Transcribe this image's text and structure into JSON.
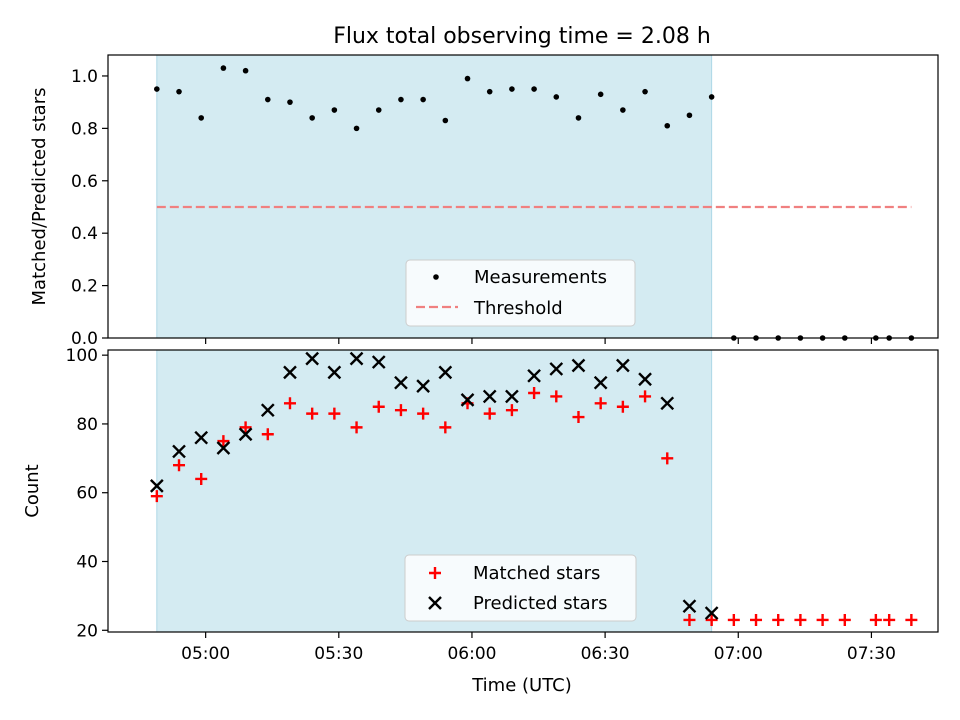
{
  "title": "Flux total observing time = 2.08 h",
  "colors": {
    "shade": "#add8e6",
    "threshold": "#f08080",
    "matched": "#ff0000",
    "predicted": "#000000",
    "measurement": "#000000"
  },
  "chart_data": [
    {
      "type": "scatter",
      "panel": "top",
      "ylabel": "Matched/Predicted stars",
      "xlabel": "",
      "xlim": [
        "04:38",
        "07:45"
      ],
      "ylim": [
        0,
        1.08
      ],
      "yticks": [
        "0.0",
        "0.2",
        "0.4",
        "0.6",
        "0.8",
        "1.0"
      ],
      "shaded_region": [
        "04:49",
        "06:54"
      ],
      "series": [
        {
          "name": "Measurements",
          "marker": "dot",
          "x": [
            "04:49",
            "04:54",
            "04:59",
            "05:04",
            "05:09",
            "05:14",
            "05:19",
            "05:24",
            "05:29",
            "05:34",
            "05:39",
            "05:44",
            "05:49",
            "05:54",
            "05:59",
            "06:04",
            "06:09",
            "06:14",
            "06:19",
            "06:24",
            "06:29",
            "06:34",
            "06:39",
            "06:44",
            "06:49",
            "06:54",
            "06:59",
            "07:04",
            "07:09",
            "07:14",
            "07:19",
            "07:24",
            "07:31",
            "07:34",
            "07:39"
          ],
          "y": [
            0.95,
            0.94,
            0.84,
            1.03,
            1.02,
            0.91,
            0.9,
            0.84,
            0.87,
            0.8,
            0.87,
            0.91,
            0.91,
            0.83,
            0.99,
            0.94,
            0.95,
            0.95,
            0.92,
            0.84,
            0.93,
            0.87,
            0.94,
            0.81,
            0.85,
            0.92,
            0,
            0,
            0,
            0,
            0,
            0,
            0,
            0,
            0
          ]
        },
        {
          "name": "Threshold",
          "line": "dashed",
          "x": [
            "04:49",
            "07:39"
          ],
          "y": [
            0.5,
            0.5
          ]
        }
      ],
      "legend": "lower-center"
    },
    {
      "type": "scatter",
      "panel": "bottom",
      "ylabel": "Count",
      "xlabel": "Time (UTC)",
      "xlim": [
        "04:38",
        "07:45"
      ],
      "ylim": [
        19.5,
        101.5
      ],
      "yticks": [
        "20",
        "40",
        "60",
        "80",
        "100"
      ],
      "xticks": [
        "05:00",
        "05:30",
        "06:00",
        "06:30",
        "07:00",
        "07:30"
      ],
      "shaded_region": [
        "04:49",
        "06:54"
      ],
      "series": [
        {
          "name": "Matched stars",
          "marker": "plus",
          "x": [
            "04:49",
            "04:54",
            "04:59",
            "05:04",
            "05:09",
            "05:14",
            "05:19",
            "05:24",
            "05:29",
            "05:34",
            "05:39",
            "05:44",
            "05:49",
            "05:54",
            "05:59",
            "06:04",
            "06:09",
            "06:14",
            "06:19",
            "06:24",
            "06:29",
            "06:34",
            "06:39",
            "06:44",
            "06:49",
            "06:54",
            "06:59",
            "07:04",
            "07:09",
            "07:14",
            "07:19",
            "07:24",
            "07:31",
            "07:34",
            "07:39"
          ],
          "y": [
            59,
            68,
            64,
            75,
            79,
            77,
            86,
            83,
            83,
            79,
            85,
            84,
            83,
            79,
            86,
            83,
            84,
            89,
            88,
            82,
            86,
            85,
            88,
            70,
            23,
            23,
            23,
            23,
            23,
            23,
            23,
            23,
            23,
            23,
            23
          ]
        },
        {
          "name": "Predicted stars",
          "marker": "x",
          "x": [
            "04:49",
            "04:54",
            "04:59",
            "05:04",
            "05:09",
            "05:14",
            "05:19",
            "05:24",
            "05:29",
            "05:34",
            "05:39",
            "05:44",
            "05:49",
            "05:54",
            "05:59",
            "06:04",
            "06:09",
            "06:14",
            "06:19",
            "06:24",
            "06:29",
            "06:34",
            "06:39",
            "06:44",
            "06:49",
            "06:54"
          ],
          "y": [
            62,
            72,
            76,
            73,
            77,
            84,
            95,
            99,
            95,
            99,
            98,
            92,
            91,
            95,
            87,
            88,
            88,
            94,
            96,
            97,
            92,
            97,
            93,
            86,
            27,
            25
          ]
        }
      ],
      "legend": "lower-center"
    }
  ]
}
